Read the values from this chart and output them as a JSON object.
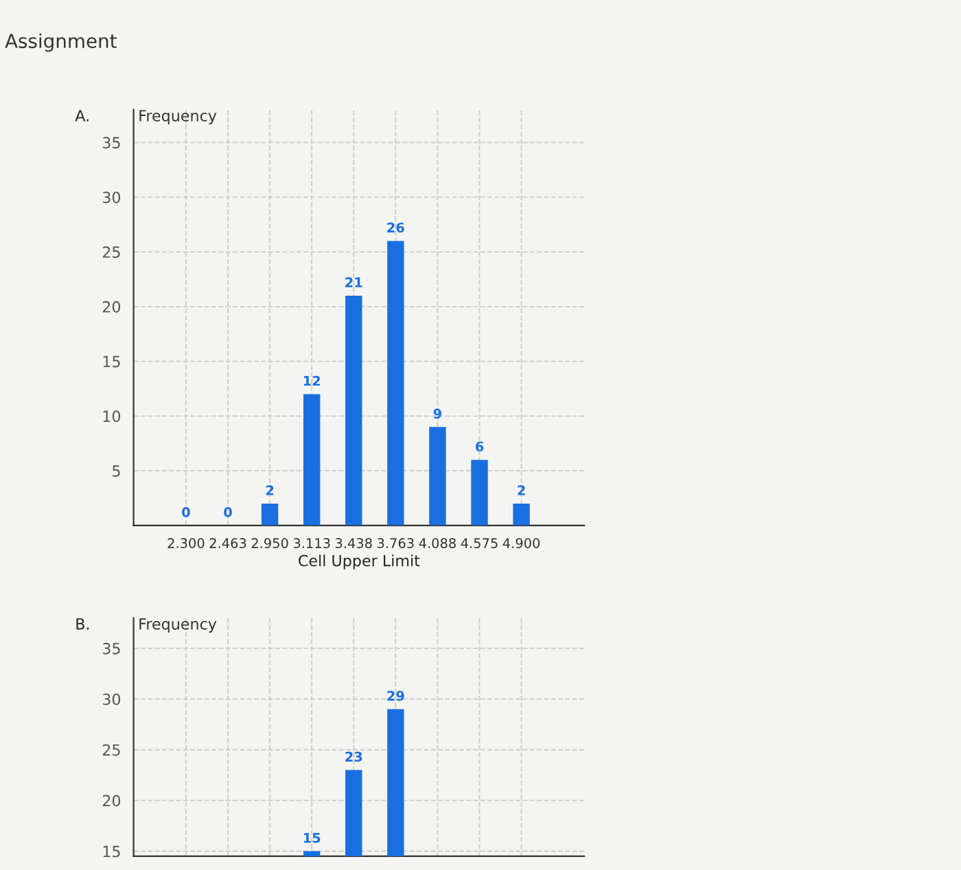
{
  "chart_data": [
    {
      "type": "bar",
      "title": "A.",
      "xlabel": "Cell Upper Limit",
      "ylabel": "Frequency",
      "annotations": [
        "Assignment"
      ],
      "categories": [
        "2.300",
        "2.463",
        "2.950",
        "3.113",
        "3.438",
        "3.763",
        "4.088",
        "4.575",
        "4.900"
      ],
      "values": [
        0,
        0,
        2,
        12,
        21,
        26,
        9,
        6,
        2
      ],
      "color": "#1a6fe0",
      "ylim": [
        0,
        38
      ],
      "yticks": [
        {
          "value": 5,
          "label": "5"
        },
        10,
        15,
        20,
        25,
        30,
        35
      ],
      "grid": true,
      "data_labels": true
    },
    {
      "type": "bar",
      "title": "B.",
      "ylabel": "Frequency",
      "categories": [
        null,
        null,
        null,
        null,
        null,
        null,
        null,
        null,
        null
      ],
      "values": [
        null,
        null,
        null,
        15,
        23,
        29,
        null,
        null,
        null
      ],
      "color": "#1a6fe0",
      "ylim": [
        14.5,
        38
      ],
      "yticks": [
        15,
        20,
        25,
        30,
        35
      ],
      "grid": true,
      "data_labels": true,
      "tick_labels": "y"
    }
  ]
}
